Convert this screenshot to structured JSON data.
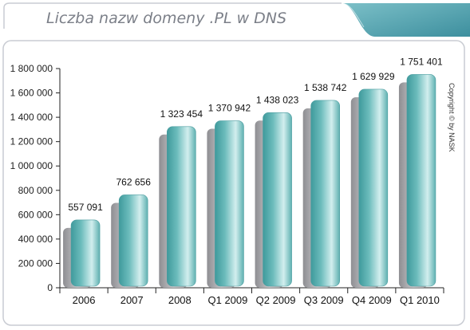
{
  "title": "Liczba nazw domeny .PL w DNS",
  "copyright": "Copyright © by NASK",
  "colors": {
    "frame": "#c9ccd3",
    "bar_front": "#5fb1b1",
    "bar_highlight": "#d2eeee",
    "bar_shadow": "#a7a7aa",
    "tab": "#4e9eab"
  },
  "chart_data": {
    "type": "bar",
    "categories": [
      "2006",
      "2007",
      "2008",
      "Q1 2009",
      "Q2 2009",
      "Q3 2009",
      "Q4 2009",
      "Q1 2010"
    ],
    "values": [
      557091,
      762656,
      1323454,
      1370942,
      1438023,
      1538742,
      1629929,
      1751401
    ],
    "value_labels": [
      "557 091",
      "762 656",
      "1 323 454",
      "1 370 942",
      "1 438 023",
      "1 538 742",
      "1 629 929",
      "1 751 401"
    ],
    "yticks": [
      "0",
      "200 000",
      "400 000",
      "600 000",
      "800 000",
      "1 000 000",
      "1 200 000",
      "1 400 000",
      "1 600 000",
      "1 800 000"
    ],
    "ylim": [
      0,
      1800000
    ],
    "xlabel": "",
    "ylabel": "",
    "grid": false,
    "legend": "none"
  }
}
